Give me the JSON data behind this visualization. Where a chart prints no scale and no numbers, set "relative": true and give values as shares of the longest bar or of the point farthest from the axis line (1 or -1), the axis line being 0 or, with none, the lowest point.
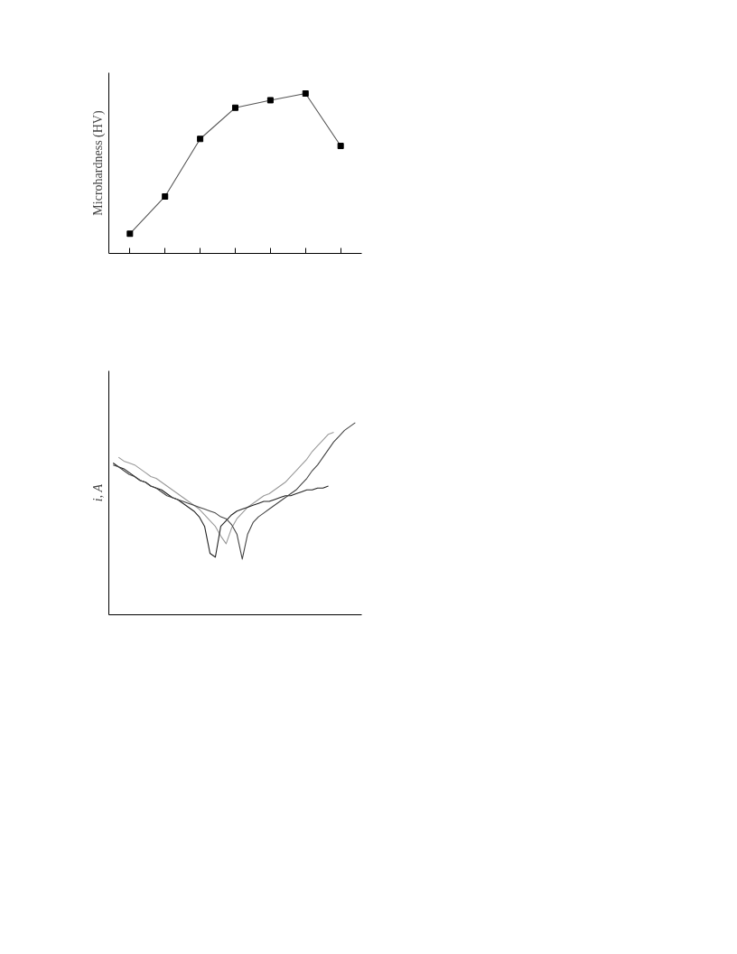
{
  "chart_data": [
    {
      "type": "line",
      "ylabel": "Microhardness (HV)",
      "relative": true,
      "marker": "square",
      "categories": [
        null,
        null,
        null,
        null,
        null,
        null,
        null
      ],
      "series": [
        {
          "color": "#555555",
          "values": [
            0.123,
            0.356,
            0.716,
            0.911,
            0.958,
            1,
            0.672
          ]
        }
      ]
    },
    {
      "type": "line",
      "ylabel": "i, A",
      "relative": true,
      "categories": [
        null,
        null,
        null,
        null,
        null,
        null,
        null,
        null,
        null,
        null,
        null,
        null,
        null,
        null,
        null,
        null,
        null,
        null,
        null,
        null,
        null,
        null,
        null,
        null,
        null,
        null,
        null,
        null,
        null,
        null,
        null,
        null,
        null,
        null,
        null,
        null,
        null,
        null,
        null,
        null,
        null,
        null,
        null,
        null,
        null,
        null
      ],
      "series": [
        {
          "color": "#999999",
          "values": [
            null,
            0.82,
            0.8,
            0.79,
            0.78,
            0.76,
            0.74,
            0.72,
            0.71,
            0.69,
            0.67,
            0.65,
            0.63,
            0.61,
            0.59,
            0.57,
            0.55,
            0.52,
            0.49,
            0.46,
            0.41,
            0.37,
            0.45,
            0.5,
            0.53,
            0.56,
            0.58,
            0.6,
            0.62,
            0.63,
            0.65,
            0.67,
            0.69,
            0.72,
            0.75,
            0.78,
            0.81,
            0.85,
            0.88,
            0.91,
            0.94,
            0.95,
            null,
            null,
            null,
            null
          ]
        },
        {
          "color": "#222222",
          "values": [
            0.79,
            0.77,
            0.76,
            0.74,
            0.72,
            0.7,
            0.69,
            0.67,
            0.66,
            0.65,
            0.63,
            0.61,
            0.6,
            0.58,
            0.56,
            0.54,
            0.51,
            0.46,
            0.32,
            0.3,
            0.46,
            0.49,
            0.52,
            0.54,
            0.55,
            0.56,
            0.57,
            0.58,
            0.59,
            0.59,
            0.6,
            0.61,
            0.62,
            0.62,
            0.63,
            0.64,
            0.65,
            0.65,
            0.66,
            0.66,
            0.67,
            null,
            null,
            null,
            null,
            null
          ]
        },
        {
          "color": "#444444",
          "values": [
            0.78,
            0.77,
            0.75,
            0.73,
            0.72,
            0.7,
            0.69,
            0.67,
            0.66,
            0.64,
            0.62,
            0.61,
            0.6,
            0.59,
            0.58,
            0.57,
            0.56,
            0.55,
            0.54,
            0.53,
            0.51,
            0.5,
            0.47,
            0.42,
            0.29,
            0.42,
            0.48,
            0.51,
            0.53,
            0.55,
            0.57,
            0.59,
            0.61,
            0.63,
            0.65,
            0.68,
            0.71,
            0.75,
            0.78,
            0.82,
            0.86,
            0.9,
            0.93,
            0.96,
            0.98,
            1
          ]
        }
      ]
    }
  ]
}
